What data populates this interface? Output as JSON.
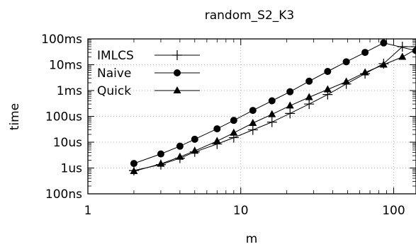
{
  "chart_data": {
    "type": "line",
    "title": "random_S2_K3",
    "xlabel": "m",
    "ylabel": "time",
    "x_scale": "log",
    "y_scale": "log",
    "xlim": [
      1,
      140
    ],
    "ylim": [
      1e-07,
      0.1
    ],
    "x_ticks": [
      {
        "value": 1,
        "label": "1"
      },
      {
        "value": 10,
        "label": "10"
      },
      {
        "value": 100,
        "label": "100"
      }
    ],
    "y_ticks": [
      {
        "value": 1e-07,
        "label": "100ns"
      },
      {
        "value": 1e-06,
        "label": "1us"
      },
      {
        "value": 1e-05,
        "label": "10us"
      },
      {
        "value": 0.0001,
        "label": "100us"
      },
      {
        "value": 0.001,
        "label": "1ms"
      },
      {
        "value": 0.01,
        "label": "10ms"
      },
      {
        "value": 0.1,
        "label": "100ms"
      }
    ],
    "grid": true,
    "legend_position": "top-left",
    "series": [
      {
        "name": "IMLCS",
        "marker": "plus",
        "x": [
          2,
          3,
          4,
          5,
          7,
          9,
          12,
          16,
          21,
          28,
          37,
          49,
          65,
          86,
          114,
          140
        ],
        "y": [
          8e-07,
          1.35e-06,
          2.4e-06,
          4.2e-06,
          8.5e-06,
          1.5e-05,
          3e-05,
          6e-05,
          0.00013,
          0.0003,
          0.0007,
          0.0018,
          0.0045,
          0.011,
          0.05,
          0.05
        ]
      },
      {
        "name": "Naive",
        "marker": "circle",
        "x": [
          2,
          3,
          4,
          5,
          7,
          9,
          12,
          16,
          21,
          28,
          37,
          49,
          65,
          86,
          140
        ],
        "y": [
          1.5e-06,
          3.5e-06,
          7e-06,
          1.3e-05,
          3.3e-05,
          7e-05,
          0.00017,
          0.0004,
          0.0009,
          0.0023,
          0.0055,
          0.013,
          0.03,
          0.07,
          0.035
        ]
      },
      {
        "name": "Quick",
        "marker": "triangle",
        "x": [
          2,
          3,
          4,
          5,
          7,
          9,
          12,
          16,
          21,
          28,
          37,
          49,
          65,
          86,
          114,
          140
        ],
        "y": [
          7.5e-07,
          1.45e-06,
          2.7e-06,
          4.6e-06,
          1.1e-05,
          2.3e-05,
          5.5e-05,
          0.00012,
          0.00026,
          0.00055,
          0.0011,
          0.0022,
          0.005,
          0.01,
          0.02,
          0.04
        ]
      }
    ]
  }
}
